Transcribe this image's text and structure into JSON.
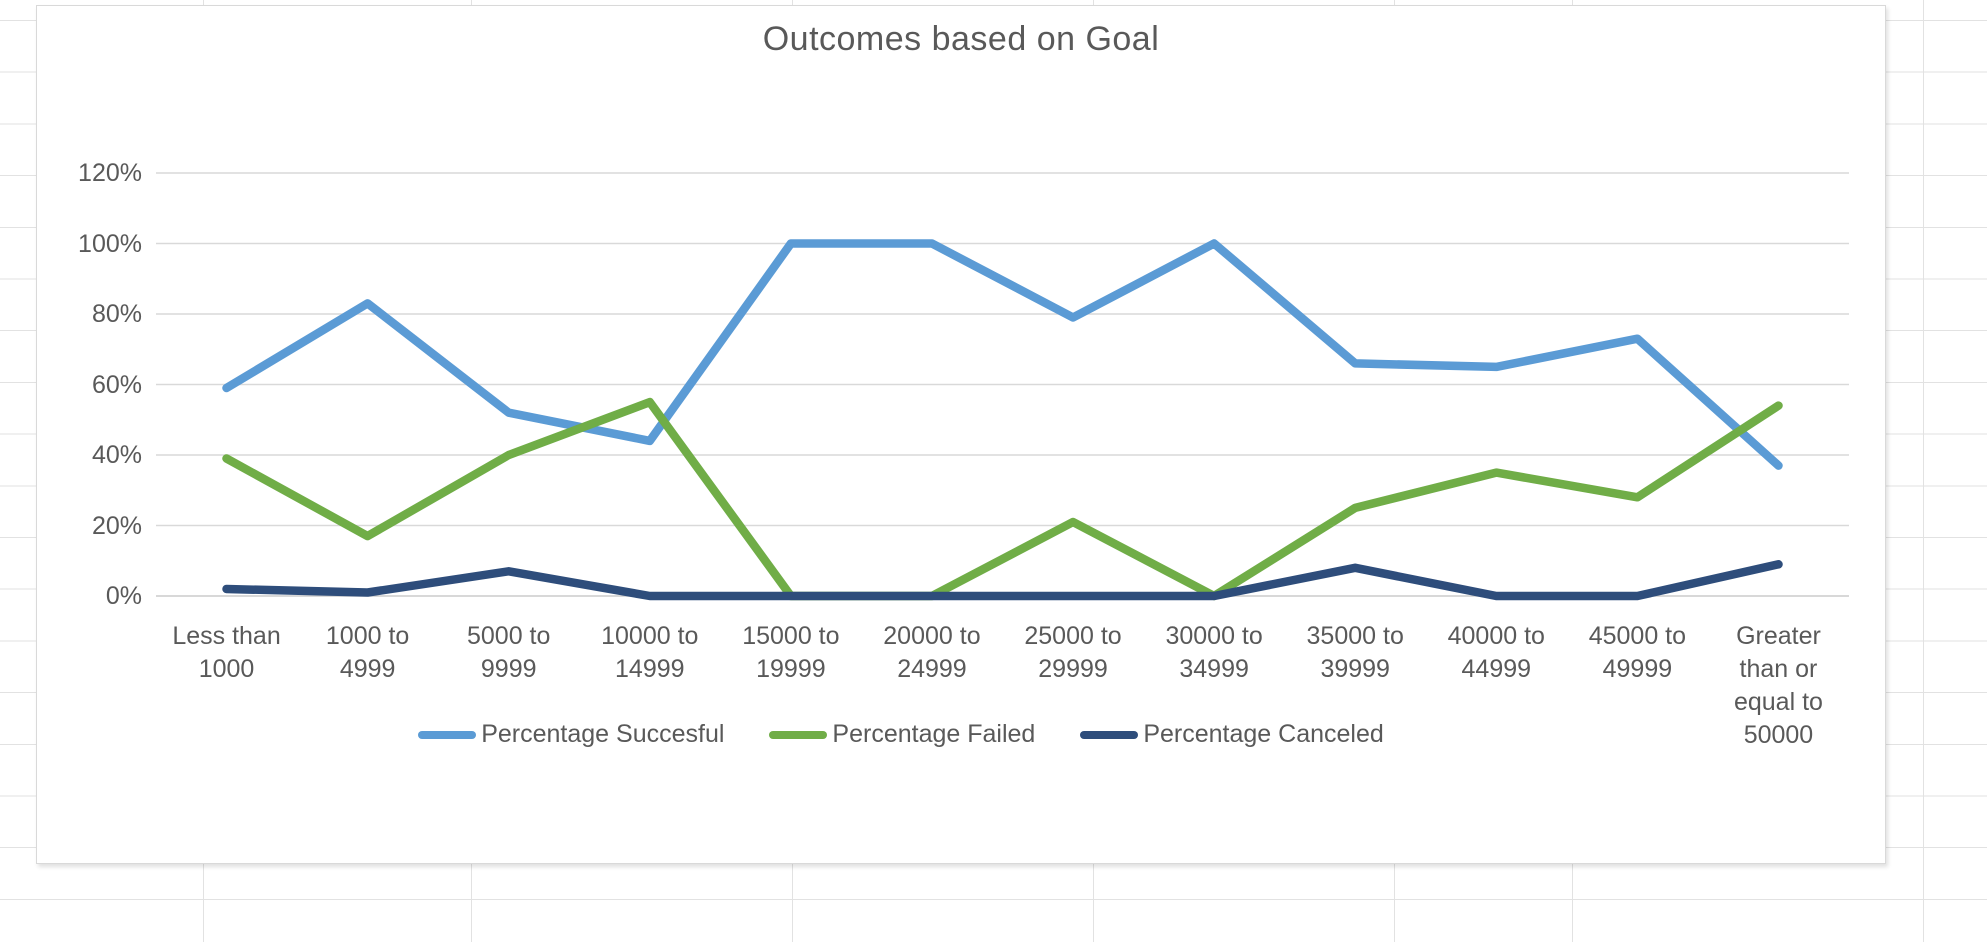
{
  "chart_data": {
    "type": "line",
    "title": "Outcomes based on Goal",
    "xlabel": "",
    "ylabel": "",
    "ylim": [
      0,
      120
    ],
    "y_tick_step": 20,
    "y_ticks": [
      "120%",
      "100%",
      "80%",
      "60%",
      "40%",
      "20%",
      "0%"
    ],
    "grid": true,
    "legend_position": "bottom",
    "categories": [
      "Less than 1000",
      "1000 to 4999",
      "5000 to 9999",
      "10000 to 14999",
      "15000 to 19999",
      "20000 to 24999",
      "25000 to 29999",
      "30000 to 34999",
      "35000 to 39999",
      "40000 to 44999",
      "45000 to 49999",
      "Greater than or equal to 50000"
    ],
    "categories_lines": [
      [
        "Less than",
        "1000"
      ],
      [
        "1000 to",
        "4999"
      ],
      [
        "5000 to",
        "9999"
      ],
      [
        "10000 to",
        "14999"
      ],
      [
        "15000 to",
        "19999"
      ],
      [
        "20000 to",
        "24999"
      ],
      [
        "25000 to",
        "29999"
      ],
      [
        "30000 to",
        "34999"
      ],
      [
        "35000 to",
        "39999"
      ],
      [
        "40000 to",
        "44999"
      ],
      [
        "45000 to",
        "49999"
      ],
      [
        "Greater",
        "than or",
        "equal to",
        "50000"
      ]
    ],
    "series": [
      {
        "name": "Percentage Succesful",
        "color": "#5B9BD5",
        "values": [
          59,
          83,
          52,
          44,
          100,
          100,
          79,
          100,
          66,
          65,
          73,
          37
        ]
      },
      {
        "name": "Percentage Failed",
        "color": "#70AD47",
        "values": [
          39,
          17,
          40,
          55,
          0,
          0,
          21,
          0,
          25,
          35,
          28,
          54
        ]
      },
      {
        "name": "Percentage Canceled",
        "color": "#2E4D7B",
        "values": [
          2,
          1,
          7,
          0,
          0,
          0,
          0,
          0,
          8,
          0,
          0,
          9
        ]
      }
    ],
    "colors": {
      "gridline": "#D9D9D9",
      "axis_line": "#CBCBCB",
      "text": "#595959"
    }
  }
}
